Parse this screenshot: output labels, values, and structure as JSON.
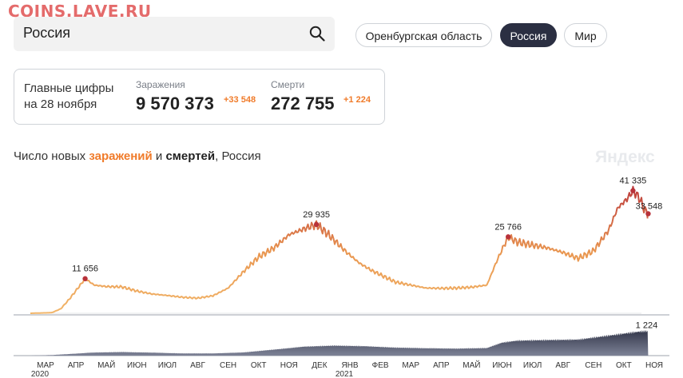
{
  "watermark": "COINS.LAVE.RU",
  "search": {
    "value": "Россия"
  },
  "regions": [
    "Оренбургская область",
    "Россия",
    "Мир"
  ],
  "summary": {
    "title_line1": "Главные цифры",
    "title_line2": "на 28 ноября",
    "infections_label": "Заражения",
    "infections_value": "9 570 373",
    "infections_delta": "+33 548",
    "deaths_label": "Смерти",
    "deaths_value": "272 755",
    "deaths_delta": "+1 224"
  },
  "chart_heading": {
    "prefix": "Число новых ",
    "infections_word": "заражений",
    "and": " и ",
    "deaths_word": "смертей",
    "suffix": ", Россия"
  },
  "brand": "Яндекс",
  "colors": {
    "accent": "#f07b2a",
    "dark": "#2b2f42",
    "curve_low": "#f2b66a",
    "curve_high": "#b8323a"
  },
  "chart_data": [
    {
      "type": "line",
      "title": "Число новых заражений",
      "months": [
        "МАР",
        "АПР",
        "МАЙ",
        "ИЮН",
        "ИЮЛ",
        "АВГ",
        "СЕН",
        "ОКТ",
        "НОЯ",
        "ДЕК",
        "ЯНВ",
        "ФЕВ",
        "МАР",
        "АПР",
        "МАЙ",
        "ИЮН",
        "ИЮЛ",
        "АВГ",
        "СЕН",
        "ОКТ",
        "НОЯ"
      ],
      "year_labels": [
        {
          "month_index": 0,
          "text": "2020"
        },
        {
          "month_index": 10,
          "text": "2021"
        }
      ],
      "series": [
        {
          "x": [
            0,
            0.7,
            1.0,
            1.3,
            1.6,
            1.8,
            2.1,
            2.5,
            3.0,
            3.5,
            4.0,
            4.5,
            5.0,
            5.5,
            6.0,
            6.5,
            7.0,
            7.5,
            8.0,
            8.5,
            9.0,
            9.4,
            9.8,
            10.1,
            10.4,
            10.8,
            11.2,
            11.6,
            12.0,
            12.5,
            13.0,
            13.5,
            14.0,
            14.5,
            15.0,
            15.3,
            15.5,
            15.7,
            16.0,
            16.5,
            17.0,
            17.5,
            18.0,
            18.5,
            19.0,
            19.3,
            19.6,
            19.8,
            20.0,
            20.2,
            20.3
          ],
          "values": [
            0,
            200,
            1500,
            5000,
            9000,
            11656,
            9500,
            9000,
            8900,
            7500,
            6500,
            6000,
            5400,
            5100,
            5900,
            8500,
            14000,
            19000,
            22000,
            26500,
            28500,
            29935,
            26500,
            23500,
            20500,
            17000,
            14500,
            12500,
            10500,
            9500,
            8500,
            8400,
            8500,
            8800,
            9500,
            17000,
            21500,
            25766,
            24000,
            23000,
            22000,
            20500,
            18500,
            21000,
            28000,
            35500,
            38500,
            41335,
            39000,
            34500,
            33548
          ]
        }
      ],
      "annotations": [
        {
          "series_index": 5,
          "label": "11 656"
        },
        {
          "series_index": 21,
          "label": "29 935"
        },
        {
          "series_index": 37,
          "label": "25 766"
        },
        {
          "series_index": 47,
          "label": "41 335"
        },
        {
          "series_index": 50,
          "label": "33 548"
        }
      ]
    },
    {
      "type": "area",
      "title": "Число новых смертей",
      "series": [
        {
          "x": [
            0,
            0.7,
            1.5,
            2.0,
            3.0,
            4.0,
            5.0,
            6.0,
            7.0,
            8.0,
            9.0,
            10.0,
            11.0,
            12.0,
            13.0,
            14.0,
            15.0,
            15.5,
            16.0,
            17.0,
            18.0,
            19.0,
            20.0,
            20.3
          ],
          "values": [
            0,
            30,
            100,
            150,
            180,
            150,
            110,
            110,
            160,
            300,
            450,
            500,
            470,
            400,
            370,
            350,
            380,
            650,
            750,
            780,
            800,
            1000,
            1200,
            1224
          ]
        }
      ],
      "annotations": [
        {
          "series_index": 23,
          "label": "1 224"
        }
      ]
    }
  ]
}
